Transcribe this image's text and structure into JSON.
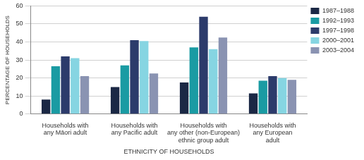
{
  "chart_data": {
    "type": "bar",
    "x_label": "ETHNICITY OF HOUSEHOLDS",
    "y_label": "PERCENTAGE OF HOUSEHOLDS",
    "categories": [
      [
        "Households with",
        "any Māori adult"
      ],
      [
        "Households with",
        "any Pacific adult"
      ],
      [
        "Households with",
        "any other (non-European)",
        "ethnic group adult"
      ],
      [
        "Households with",
        "any European",
        "adult"
      ]
    ],
    "series": [
      {
        "name": "1987–1988",
        "color": "#1b2845",
        "values": [
          8,
          15,
          17.5,
          11.5
        ]
      },
      {
        "name": "1992–1993",
        "color": "#1a9ba3",
        "values": [
          26.5,
          27,
          37,
          18.5
        ]
      },
      {
        "name": "1997–1998",
        "color": "#2c3b6b",
        "values": [
          32,
          41,
          54,
          21
        ]
      },
      {
        "name": "2000–2001",
        "color": "#86d5e2",
        "values": [
          31,
          40.5,
          36,
          20
        ]
      },
      {
        "name": "2003–2004",
        "color": "#8a93b2",
        "values": [
          21,
          22.5,
          42.5,
          19
        ]
      }
    ],
    "ylim": [
      0,
      60
    ],
    "yticks": [
      0,
      10,
      20,
      30,
      40,
      50,
      60
    ],
    "grid": true,
    "legend": "right"
  }
}
